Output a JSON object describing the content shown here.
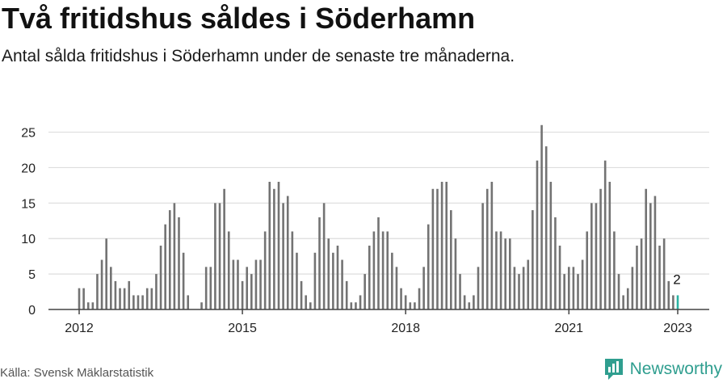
{
  "title": "Två fritidshus såldes i Söderhamn",
  "subtitle": "Antal sålda fritidshus i Söderhamn under de senaste tre månaderna.",
  "source": "Källa: Svensk Mäklarstatistik",
  "brand": "Newsworthy",
  "colors": {
    "bar": "#737373",
    "highlight": "#2bb3a3",
    "grid": "#dddddd",
    "axis": "#444444",
    "brand": "#2f9e8f"
  },
  "chart_data": {
    "type": "bar",
    "xlabel": "",
    "ylabel": "",
    "ylim": [
      0,
      27
    ],
    "yticks": [
      0,
      5,
      10,
      15,
      20,
      25
    ],
    "xticks": [
      {
        "label": "2012",
        "index": 0
      },
      {
        "label": "2015",
        "index": 36
      },
      {
        "label": "2018",
        "index": 72
      },
      {
        "label": "2021",
        "index": 108
      },
      {
        "label": "2023",
        "index": 132
      }
    ],
    "highlight_last": true,
    "last_value_label": "2",
    "values": [
      3,
      3,
      1,
      1,
      5,
      7,
      10,
      6,
      4,
      3,
      3,
      4,
      2,
      2,
      2,
      3,
      3,
      5,
      9,
      12,
      14,
      15,
      13,
      8,
      2,
      0,
      0,
      1,
      6,
      6,
      15,
      15,
      17,
      11,
      7,
      7,
      4,
      6,
      5,
      7,
      7,
      11,
      18,
      17,
      18,
      15,
      16,
      11,
      8,
      4,
      2,
      1,
      8,
      13,
      15,
      10,
      8,
      9,
      7,
      4,
      1,
      1,
      2,
      5,
      9,
      11,
      13,
      11,
      11,
      8,
      6,
      3,
      2,
      1,
      1,
      3,
      6,
      12,
      17,
      17,
      18,
      18,
      14,
      10,
      5,
      2,
      1,
      2,
      6,
      15,
      17,
      18,
      11,
      11,
      10,
      10,
      6,
      5,
      6,
      7,
      14,
      21,
      26,
      23,
      18,
      13,
      9,
      5,
      6,
      6,
      5,
      7,
      11,
      15,
      15,
      17,
      21,
      18,
      11,
      5,
      2,
      3,
      6,
      9,
      10,
      17,
      15,
      16,
      9,
      10,
      4,
      2,
      2
    ]
  }
}
